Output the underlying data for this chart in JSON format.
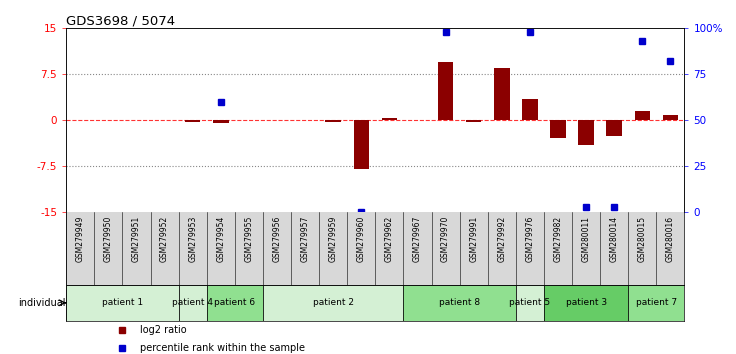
{
  "title": "GDS3698 / 5074",
  "samples": [
    "GSM279949",
    "GSM279950",
    "GSM279951",
    "GSM279952",
    "GSM279953",
    "GSM279954",
    "GSM279955",
    "GSM279956",
    "GSM279957",
    "GSM279959",
    "GSM279960",
    "GSM279962",
    "GSM279967",
    "GSM279970",
    "GSM279991",
    "GSM279992",
    "GSM279976",
    "GSM279982",
    "GSM280011",
    "GSM280014",
    "GSM280015",
    "GSM280016"
  ],
  "log2_ratio": [
    0.0,
    0.0,
    0.0,
    0.0,
    -0.3,
    -0.5,
    0.0,
    0.0,
    0.0,
    -0.3,
    -8.0,
    0.4,
    0.0,
    9.5,
    -0.2,
    8.5,
    3.5,
    -2.8,
    -4.0,
    -2.5,
    1.5,
    0.8
  ],
  "percentile_rank": [
    null,
    null,
    null,
    null,
    null,
    60,
    null,
    null,
    null,
    null,
    0,
    null,
    null,
    98,
    null,
    null,
    98,
    null,
    3,
    3,
    93,
    82
  ],
  "patients": [
    {
      "label": "patient 1",
      "start": 0,
      "end": 4
    },
    {
      "label": "patient 4",
      "start": 4,
      "end": 5
    },
    {
      "label": "patient 6",
      "start": 5,
      "end": 7
    },
    {
      "label": "patient 2",
      "start": 7,
      "end": 12
    },
    {
      "label": "patient 8",
      "start": 12,
      "end": 16
    },
    {
      "label": "patient 5",
      "start": 16,
      "end": 17
    },
    {
      "label": "patient 3",
      "start": 17,
      "end": 20
    },
    {
      "label": "patient 7",
      "start": 20,
      "end": 22
    }
  ],
  "patient_colors": [
    "#d4f0d4",
    "#d4f0d4",
    "#90e090",
    "#d4f0d4",
    "#90e090",
    "#d4f0d4",
    "#66cc66",
    "#90e090"
  ],
  "bar_color_red": "#8b0000",
  "dot_color_blue": "#0000cc",
  "ylim_left": [
    -15,
    15
  ],
  "ylim_right": [
    0,
    100
  ],
  "yticks_left": [
    -15,
    -7.5,
    0,
    7.5,
    15
  ],
  "yticks_left_labels": [
    "-15",
    "-7.5",
    "0",
    "7.5",
    "15"
  ],
  "yticks_right": [
    0,
    25,
    50,
    75,
    100
  ],
  "yticks_right_labels": [
    "0",
    "25",
    "50",
    "75",
    "100%"
  ],
  "legend_items": [
    {
      "label": "log2 ratio",
      "color": "#8b0000"
    },
    {
      "label": "percentile rank within the sample",
      "color": "#0000cc"
    }
  ]
}
